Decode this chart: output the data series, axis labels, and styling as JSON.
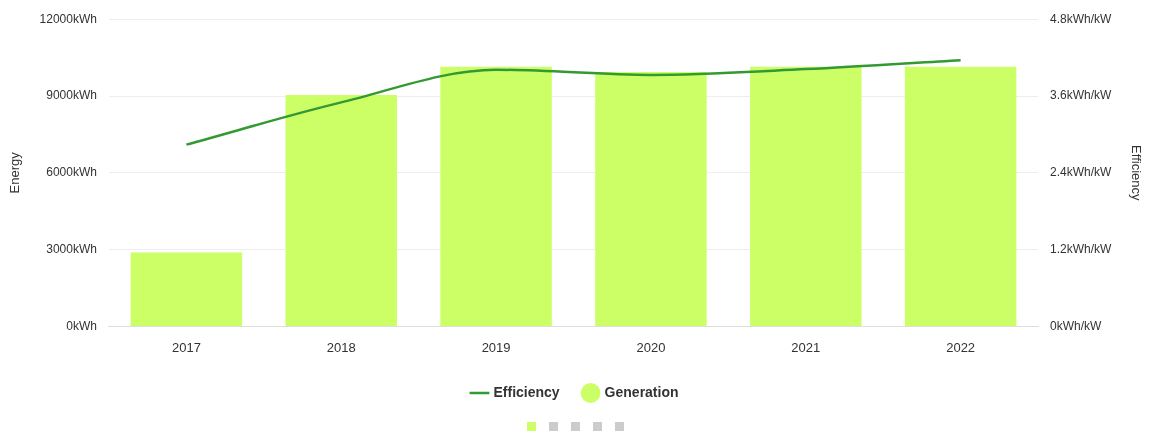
{
  "chart_data": {
    "type": "bar",
    "ylabel": "Energy",
    "y2label": "Efficiency",
    "categories": [
      "2017",
      "2018",
      "2019",
      "2020",
      "2021",
      "2022"
    ],
    "series": [
      {
        "name": "Generation",
        "color": "#ccff66",
        "values": [
          2890,
          9040,
          10140,
          9940,
          10140,
          10140
        ]
      },
      {
        "name": "Efficiency",
        "type": "line",
        "axis": "y2",
        "color": "#339933",
        "values": [
          2.84,
          3.5,
          4.01,
          3.93,
          4.02,
          4.16
        ]
      }
    ],
    "ylim": [
      0,
      12000
    ],
    "yticks": [
      {
        "value": 0,
        "label": "0kWh"
      },
      {
        "value": 3000,
        "label": "3000kWh"
      },
      {
        "value": 6000,
        "label": "6000kWh"
      },
      {
        "value": 9000,
        "label": "9000kWh"
      },
      {
        "value": 12000,
        "label": "12000kWh"
      }
    ],
    "y2lim": [
      0,
      4.8
    ],
    "y2ticks": [
      {
        "value": 0,
        "label": "0kWh/kW"
      },
      {
        "value": 1.2,
        "label": "1.2kWh/kW"
      },
      {
        "value": 2.4,
        "label": "2.4kWh/kW"
      },
      {
        "value": 3.6,
        "label": "3.6kWh/kW"
      },
      {
        "value": 4.8,
        "label": "4.8kWh/kW"
      }
    ],
    "grid": "y",
    "legend": "bottom",
    "marker": "none",
    "line_style": "solid"
  }
}
